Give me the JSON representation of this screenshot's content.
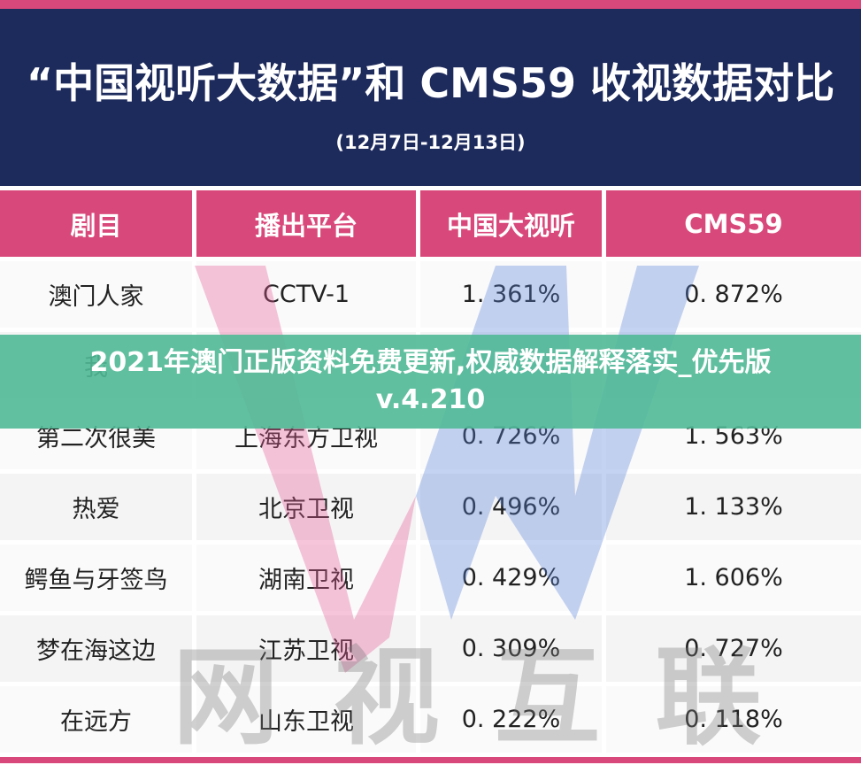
{
  "header": {
    "title": "“中国视听大数据”和 CMS59 收视数据对比",
    "subtitle": "(12月7日-12月13日)"
  },
  "table": {
    "columns": [
      "剧目",
      "播出平台",
      "中国大视听",
      "CMS59"
    ],
    "rows": [
      [
        "澳门人家",
        "CCTV-1",
        "1. 361%",
        "0. 872%"
      ],
      [
        "我",
        "",
        "",
        ""
      ],
      [
        "第二次很美",
        "上海东方卫视",
        "0. 726%",
        "1. 563%"
      ],
      [
        "热爱",
        "北京卫视",
        "0. 496%",
        "1. 133%"
      ],
      [
        "鳄鱼与牙签鸟",
        "湖南卫视",
        "0. 429%",
        "1. 606%"
      ],
      [
        "梦在海这边",
        "江苏卫视",
        "0. 309%",
        "0. 727%"
      ],
      [
        "在远方",
        "山东卫视",
        "0. 222%",
        "0. 118%"
      ]
    ]
  },
  "watermark": "网 视 互 联",
  "banner": {
    "line1": "2021年澳门正版资料免费更新,权威数据解释落实_优先版",
    "line2": "v.4.210"
  }
}
